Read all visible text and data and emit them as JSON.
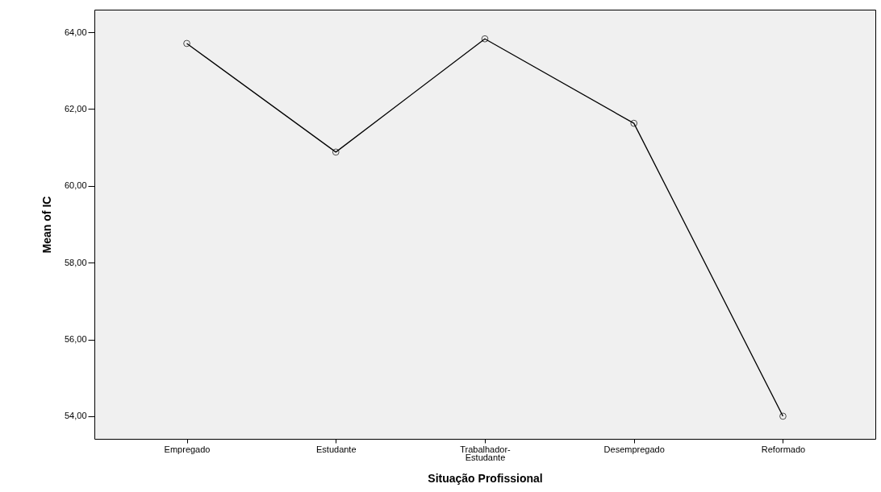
{
  "chart_data": {
    "type": "line",
    "xlabel": "Situação  Profissional",
    "ylabel": "Mean of IC",
    "categories": [
      "Empregado",
      "Estudante",
      "Trabalhador-Estudante",
      "Desempregado",
      "Reformado"
    ],
    "series": [
      {
        "color": "#000000",
        "values": [
          63.71,
          60.88,
          63.83,
          61.63,
          54.0
        ]
      }
    ],
    "ylim": [
      53.41,
      64.59
    ],
    "yticks": [
      {
        "value": 54,
        "label": "54,00"
      },
      {
        "value": 56,
        "label": "56,00"
      },
      {
        "value": 58,
        "label": "58,00"
      },
      {
        "value": 60,
        "label": "60,00"
      },
      {
        "value": 62,
        "label": "62,00"
      },
      {
        "value": 64,
        "label": "64,00"
      }
    ],
    "grid": false,
    "marker": "circle",
    "line_style": "solid"
  }
}
